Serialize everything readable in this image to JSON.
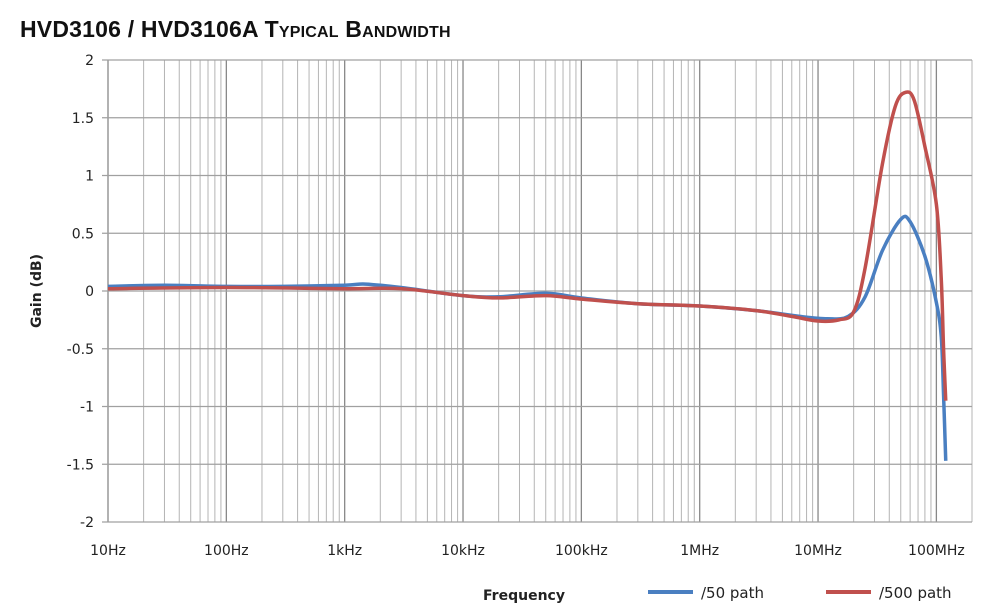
{
  "chart_data": {
    "type": "line",
    "title": "HVD3106 / HVD3106A Typical Bandwidth",
    "xlabel": "Frequency",
    "ylabel": "Gain  (dB)",
    "xscale": "log",
    "xlim": [
      10,
      200000000
    ],
    "ylim": [
      -2,
      2
    ],
    "grid": true,
    "legend": "bottom-right",
    "x_ticks": [
      {
        "value": 10,
        "label": "10Hz"
      },
      {
        "value": 100,
        "label": "100Hz"
      },
      {
        "value": 1000,
        "label": "1kHz"
      },
      {
        "value": 10000,
        "label": "10kHz"
      },
      {
        "value": 100000,
        "label": "100kHz"
      },
      {
        "value": 1000000,
        "label": "1MHz"
      },
      {
        "value": 10000000,
        "label": "10MHz"
      },
      {
        "value": 100000000,
        "label": "100MHz"
      }
    ],
    "y_ticks": [
      {
        "value": 2,
        "label": "2"
      },
      {
        "value": 1.5,
        "label": "1.5"
      },
      {
        "value": 1,
        "label": "1"
      },
      {
        "value": 0.5,
        "label": "0.5"
      },
      {
        "value": 0,
        "label": "0"
      },
      {
        "value": -0.5,
        "label": "-0.5"
      },
      {
        "value": -1,
        "label": "-1"
      },
      {
        "value": -1.5,
        "label": "-1.5"
      },
      {
        "value": -2,
        "label": "-2"
      }
    ],
    "series": [
      {
        "name": "/50 path",
        "color": "#4a7fc1",
        "x": [
          10,
          30,
          100,
          300,
          1000,
          1500,
          3000,
          10000,
          20000,
          50000,
          100000,
          300000,
          1000000,
          3000000,
          7000000,
          12000000,
          18000000,
          25000000,
          35000000,
          50000000,
          60000000,
          80000000,
          100000000,
          110000000,
          115000000,
          120000000
        ],
        "y": [
          0.04,
          0.05,
          0.04,
          0.04,
          0.05,
          0.06,
          0.03,
          -0.04,
          -0.05,
          -0.02,
          -0.06,
          -0.11,
          -0.13,
          -0.17,
          -0.22,
          -0.24,
          -0.22,
          -0.05,
          0.35,
          0.62,
          0.6,
          0.3,
          -0.1,
          -0.4,
          -0.9,
          -1.47
        ]
      },
      {
        "name": "/500 path",
        "color": "#c0504d",
        "x": [
          10,
          100,
          1000,
          3000,
          10000,
          20000,
          50000,
          100000,
          300000,
          1000000,
          3000000,
          6000000,
          10000000,
          15000000,
          20000000,
          25000000,
          35000000,
          45000000,
          55000000,
          65000000,
          80000000,
          100000000,
          110000000,
          115000000,
          120000000
        ],
        "y": [
          0.02,
          0.03,
          0.02,
          0.02,
          -0.04,
          -0.06,
          -0.04,
          -0.07,
          -0.11,
          -0.13,
          -0.17,
          -0.22,
          -0.26,
          -0.25,
          -0.18,
          0.2,
          1.1,
          1.6,
          1.72,
          1.65,
          1.25,
          0.75,
          0.1,
          -0.5,
          -0.95
        ]
      }
    ]
  }
}
